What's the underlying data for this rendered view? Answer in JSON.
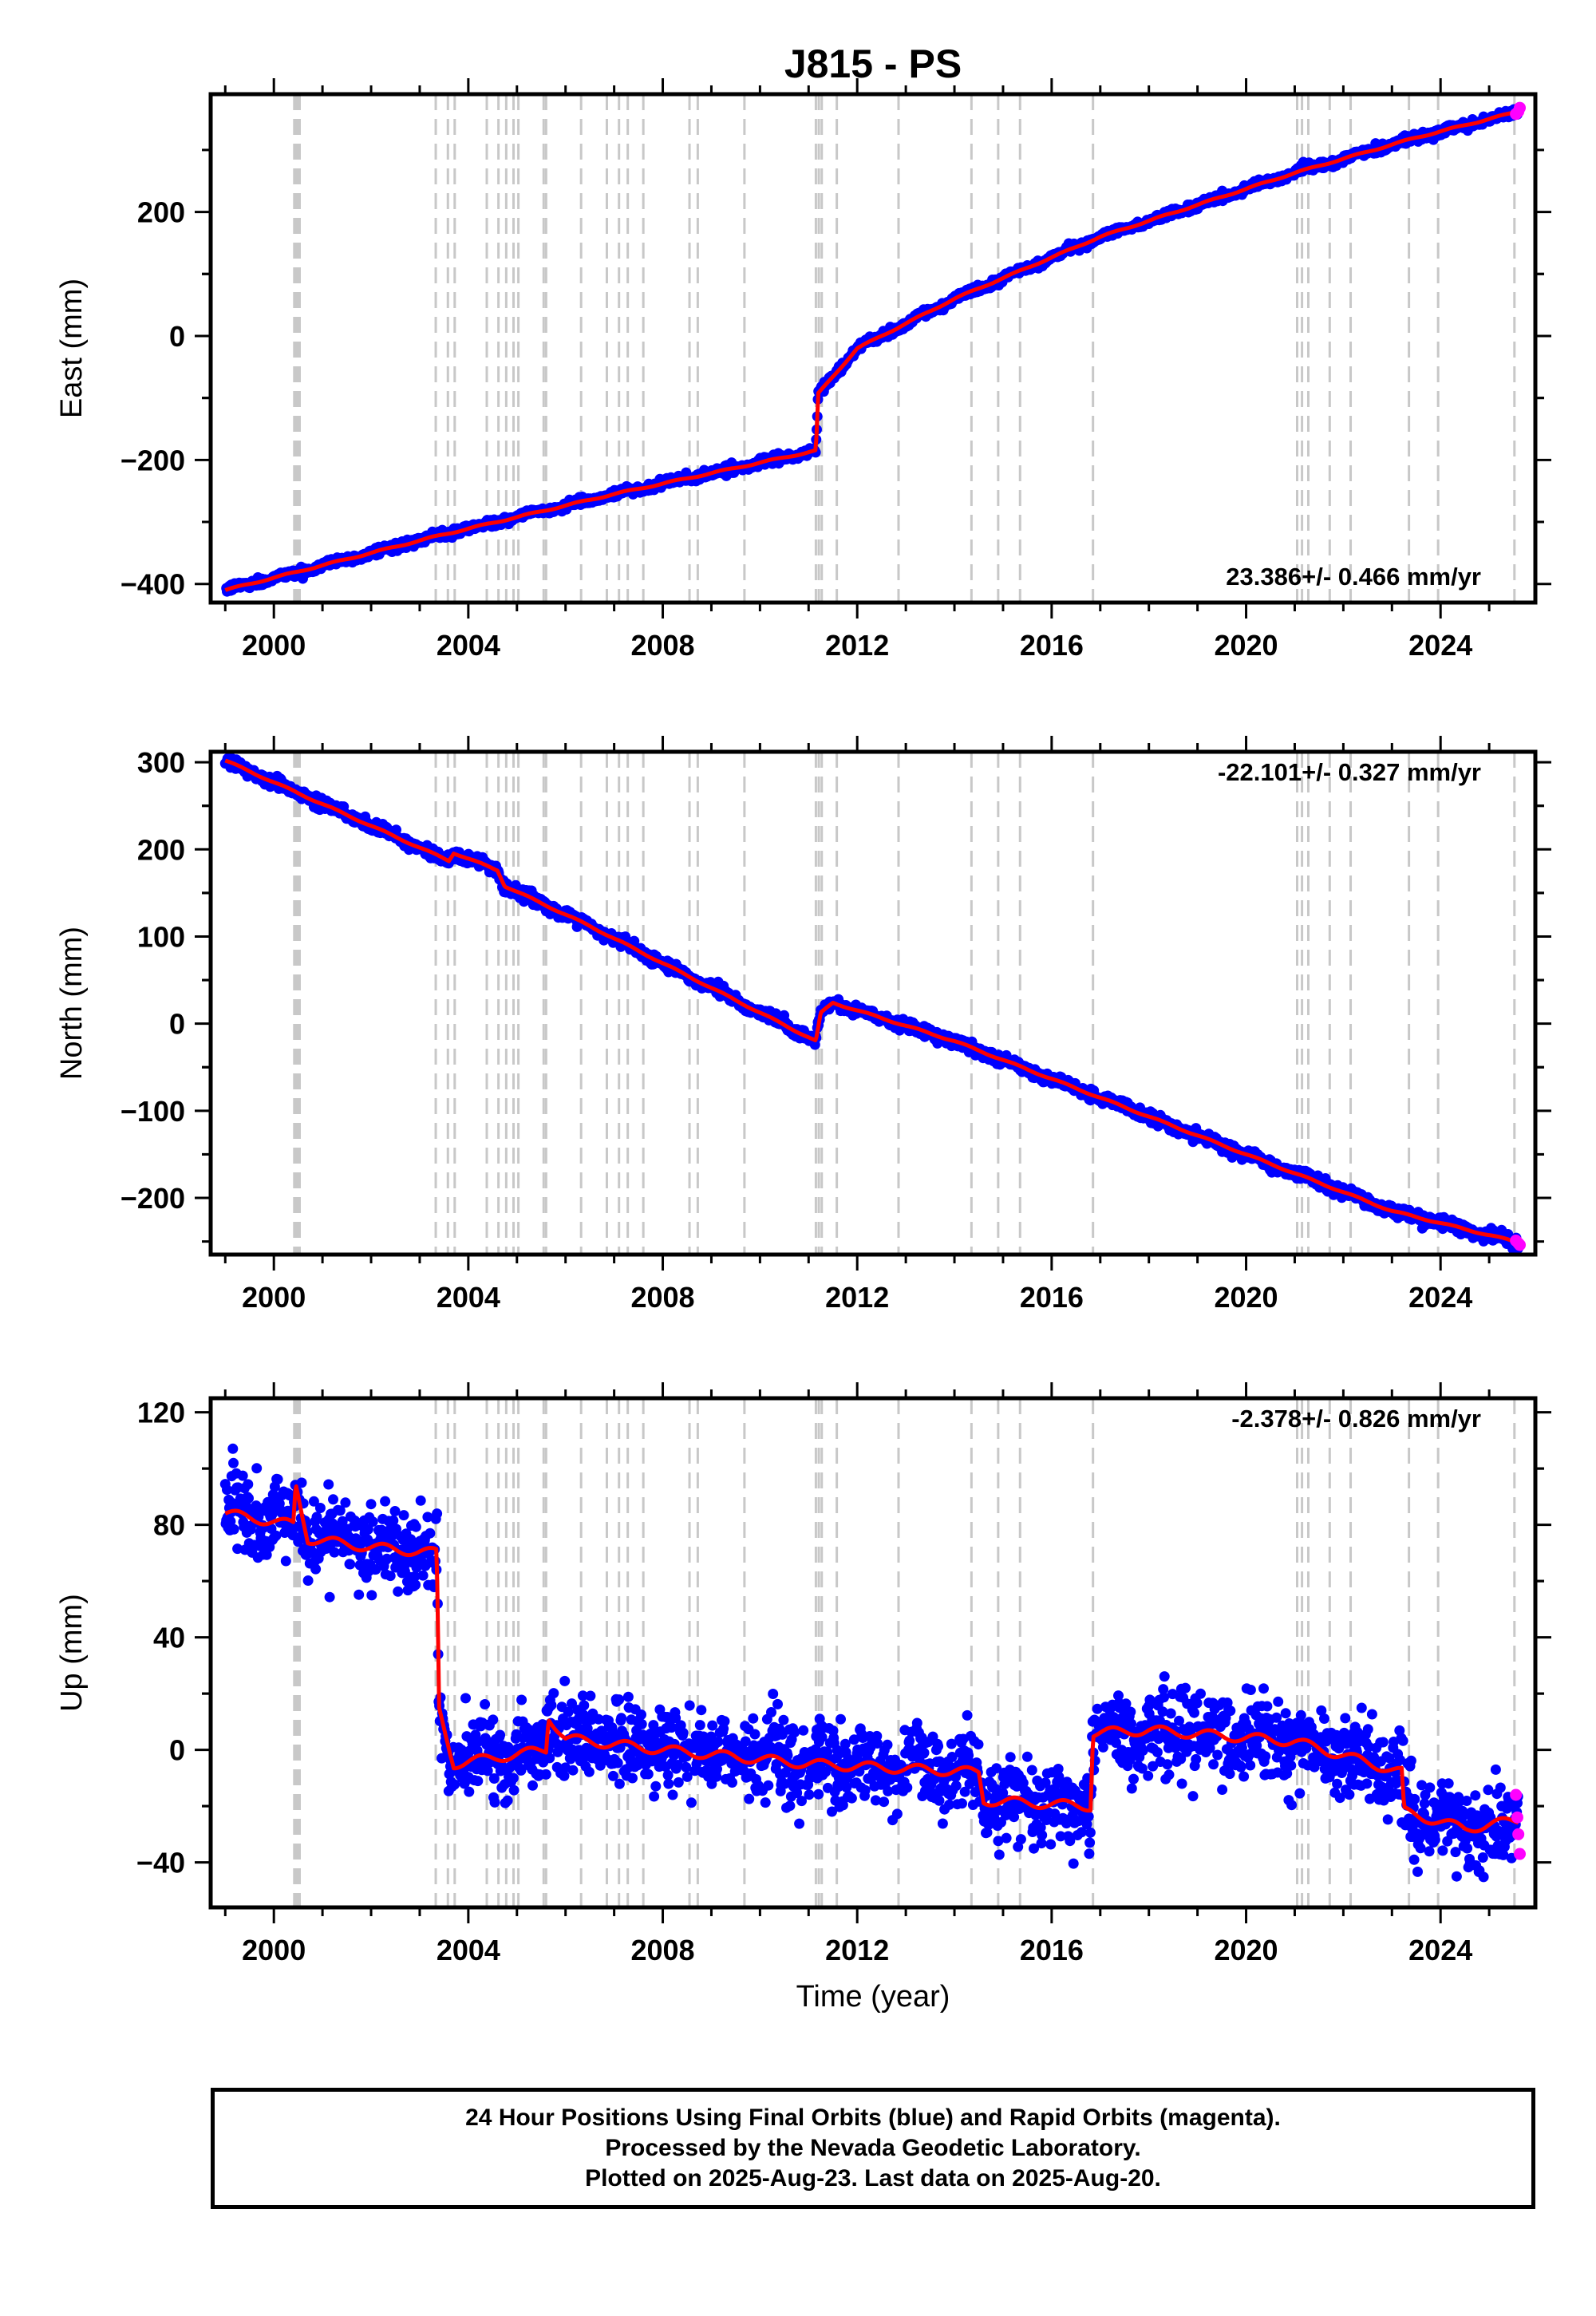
{
  "title": "J815 - PS",
  "colors": {
    "final_orbits": "#0000ff",
    "rapid_orbits": "#ff00ff",
    "model_fit": "#ff0000",
    "event_lines": "#c8c8c8"
  },
  "chart_data": [
    {
      "type": "scatter",
      "title": "J815 - PS",
      "xlabel": "",
      "ylabel": "East (mm)",
      "xlim": [
        1998.7,
        2025.95
      ],
      "ylim": [
        -430,
        390
      ],
      "xticks": [
        2000,
        2004,
        2008,
        2012,
        2016,
        2020,
        2024
      ],
      "yticks": [
        -400,
        -200,
        0,
        200
      ],
      "ytick_labels": [
        "−400",
        "−200",
        "0",
        "200"
      ],
      "grid": false,
      "velocity_label": "23.386+/- 0.466 mm/yr",
      "velocity_label_position": "bottom-right",
      "noise_mm": 3,
      "seasonal_mm": 2,
      "steps": [
        {
          "x": 2011.19,
          "value": 95
        }
      ],
      "postseismic": [
        {
          "x": 2011.2,
          "amplitude": 180,
          "tau_years": 0.8
        }
      ],
      "fit_series": [
        {
          "x": 1999.0,
          "y": -410
        },
        {
          "x": 2003.4,
          "y": -322
        },
        {
          "x": 2007.0,
          "y": -255
        },
        {
          "x": 2011.15,
          "y": -185
        },
        {
          "x": 2011.2,
          "y": -93
        },
        {
          "x": 2012.0,
          "y": -20
        },
        {
          "x": 2014.0,
          "y": 60
        },
        {
          "x": 2017.0,
          "y": 160
        },
        {
          "x": 2021.0,
          "y": 263
        },
        {
          "x": 2023.5,
          "y": 320
        },
        {
          "x": 2025.6,
          "y": 362
        }
      ],
      "rapid_points": [
        {
          "x": 2025.55,
          "y": 358
        },
        {
          "x": 2025.6,
          "y": 362
        },
        {
          "x": 2025.63,
          "y": 368
        }
      ]
    },
    {
      "type": "scatter",
      "xlabel": "",
      "ylabel": "North (mm)",
      "xlim": [
        1998.7,
        2025.95
      ],
      "ylim": [
        -265,
        312
      ],
      "xticks": [
        2000,
        2004,
        2008,
        2012,
        2016,
        2020,
        2024
      ],
      "yticks": [
        -200,
        -100,
        0,
        100,
        200,
        300
      ],
      "ytick_labels": [
        "−200",
        "−100",
        "0",
        "100",
        "200",
        "300"
      ],
      "grid": false,
      "velocity_label": "-22.101+/- 0.327 mm/yr",
      "velocity_label_position": "top-right",
      "noise_mm": 3,
      "seasonal_mm": 1.5,
      "steps": [
        {
          "x": 2003.7,
          "value": 10
        },
        {
          "x": 2004.7,
          "value": -15
        },
        {
          "x": 2011.19,
          "value": 30
        }
      ],
      "postseismic": [],
      "fit_series": [
        {
          "x": 1999.0,
          "y": 302
        },
        {
          "x": 2003.6,
          "y": 187
        },
        {
          "x": 2003.7,
          "y": 196
        },
        {
          "x": 2004.6,
          "y": 176
        },
        {
          "x": 2004.75,
          "y": 158
        },
        {
          "x": 2006.5,
          "y": 112
        },
        {
          "x": 2011.15,
          "y": -20
        },
        {
          "x": 2011.25,
          "y": 12
        },
        {
          "x": 2011.5,
          "y": 24
        },
        {
          "x": 2014.0,
          "y": -20
        },
        {
          "x": 2020.0,
          "y": -150
        },
        {
          "x": 2023.0,
          "y": -215
        },
        {
          "x": 2025.6,
          "y": -251
        }
      ],
      "rapid_points": [
        {
          "x": 2025.55,
          "y": -249
        },
        {
          "x": 2025.6,
          "y": -252
        },
        {
          "x": 2025.63,
          "y": -254
        }
      ]
    },
    {
      "type": "scatter",
      "xlabel": "Time (year)",
      "ylabel": "Up (mm)",
      "xlim": [
        1998.7,
        2025.95
      ],
      "ylim": [
        -56,
        125
      ],
      "xticks": [
        2000,
        2004,
        2008,
        2012,
        2016,
        2020,
        2024
      ],
      "yticks": [
        -40,
        0,
        40,
        80,
        120
      ],
      "ytick_labels": [
        "−40",
        "0",
        "40",
        "80",
        "120"
      ],
      "grid": false,
      "velocity_label": "-2.378+/- 0.826 mm/yr",
      "velocity_label_position": "top-right",
      "noise_mm": 7,
      "seasonal_mm": 3,
      "steps": [],
      "postseismic": [],
      "fit_series": [
        {
          "x": 1999.0,
          "y": 84
        },
        {
          "x": 2000.4,
          "y": 80
        },
        {
          "x": 2000.45,
          "y": 94
        },
        {
          "x": 2000.7,
          "y": 75
        },
        {
          "x": 2002.0,
          "y": 72
        },
        {
          "x": 2003.35,
          "y": 70
        },
        {
          "x": 2003.4,
          "y": 14
        },
        {
          "x": 2003.7,
          "y": -5
        },
        {
          "x": 2005.6,
          "y": 0
        },
        {
          "x": 2005.65,
          "y": 12
        },
        {
          "x": 2006.0,
          "y": 4
        },
        {
          "x": 2008.0,
          "y": 0
        },
        {
          "x": 2011.0,
          "y": -5
        },
        {
          "x": 2014.5,
          "y": -8
        },
        {
          "x": 2014.6,
          "y": -18
        },
        {
          "x": 2016.8,
          "y": -20
        },
        {
          "x": 2016.85,
          "y": 6
        },
        {
          "x": 2018.0,
          "y": 7
        },
        {
          "x": 2021.0,
          "y": 3
        },
        {
          "x": 2023.2,
          "y": -8
        },
        {
          "x": 2023.25,
          "y": -22
        },
        {
          "x": 2024.5,
          "y": -28
        },
        {
          "x": 2025.6,
          "y": -25
        }
      ],
      "rapid_points": [
        {
          "x": 2025.55,
          "y": -16
        },
        {
          "x": 2025.58,
          "y": -24
        },
        {
          "x": 2025.6,
          "y": -30
        },
        {
          "x": 2025.63,
          "y": -37
        }
      ]
    }
  ],
  "event_lines": [
    2000.42,
    2000.46,
    2000.5,
    2000.53,
    2003.33,
    2003.58,
    2003.72,
    2004.38,
    2004.62,
    2004.78,
    2004.93,
    2005.03,
    2005.55,
    2005.6,
    2006.32,
    2006.85,
    2007.1,
    2007.28,
    2007.6,
    2008.55,
    2008.72,
    2009.68,
    2011.15,
    2011.21,
    2011.27,
    2011.58,
    2012.85,
    2014.35,
    2014.9,
    2015.35,
    2016.85,
    2021.05,
    2021.15,
    2021.28,
    2021.72,
    2022.15,
    2023.35,
    2023.95,
    2025.52
  ],
  "footer": {
    "line1": "24 Hour Positions Using Final Orbits (blue) and Rapid Orbits (magenta).",
    "line2": "Processed by the Nevada Geodetic Laboratory.",
    "line3": "Plotted on 2025-Aug-23. Last data on 2025-Aug-20."
  }
}
